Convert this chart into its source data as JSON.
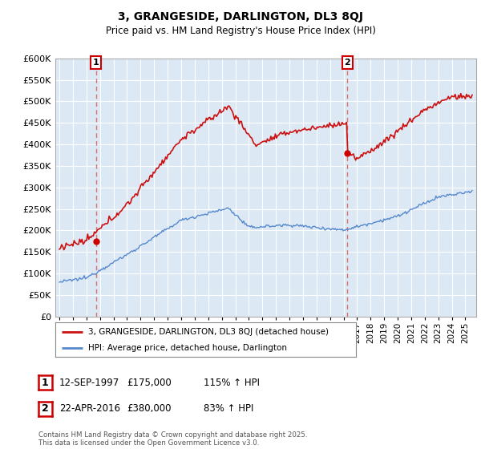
{
  "title": "3, GRANGESIDE, DARLINGTON, DL3 8QJ",
  "subtitle": "Price paid vs. HM Land Registry's House Price Index (HPI)",
  "bg_color": "#ffffff",
  "plot_bg_color": "#dce9f5",
  "grid_color": "#ffffff",
  "sale1_date": "12-SEP-1997",
  "sale1_price": 175000,
  "sale1_hpi": "115% ↑ HPI",
  "sale2_date": "22-APR-2016",
  "sale2_price": 380000,
  "sale2_hpi": "83% ↑ HPI",
  "legend1": "3, GRANGESIDE, DARLINGTON, DL3 8QJ (detached house)",
  "legend2": "HPI: Average price, detached house, Darlington",
  "footer": "Contains HM Land Registry data © Crown copyright and database right 2025.\nThis data is licensed under the Open Government Licence v3.0.",
  "sale1_color": "#cc0000",
  "sale2_color": "#cc0000",
  "vline_color": "#e07070",
  "hpi_line_color": "#5588cc",
  "price_line_color": "#cc1111",
  "ylim": [
    0,
    600000
  ],
  "yticks": [
    0,
    50000,
    100000,
    150000,
    200000,
    250000,
    300000,
    350000,
    400000,
    450000,
    500000,
    550000,
    600000
  ],
  "xlim_start": 1994.7,
  "xlim_end": 2025.8
}
